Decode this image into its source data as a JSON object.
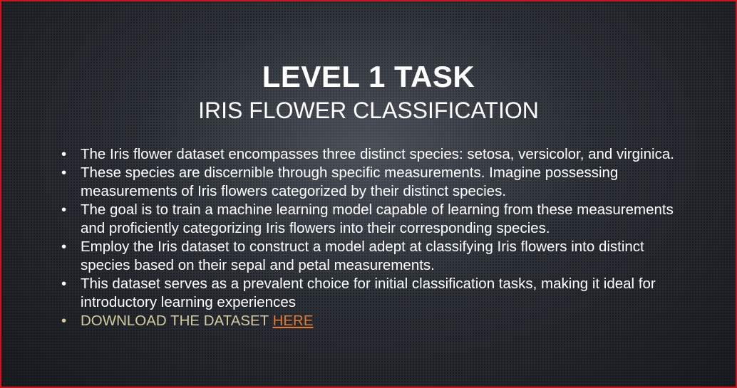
{
  "slide": {
    "title": "LEVEL 1 TASK",
    "subtitle": "IRIS FLOWER CLASSIFICATION",
    "bullet_glyph": "•",
    "bullets": [
      "The Iris flower dataset encompasses three distinct species: setosa, versicolor, and virginica.",
      "These species are discernible through specific measurements. Imagine possessing measurements of Iris flowers categorized by their distinct species.",
      "The goal is to train a machine learning model capable of learning from these measurements and proficiently categorizing Iris flowers into their corresponding species.",
      "Employ the Iris dataset to construct a model adept at classifying Iris flowers into distinct species based on their sepal and petal measurements.",
      "This dataset serves as a prevalent choice for initial classification tasks, making it ideal for introductory learning experiences"
    ],
    "download": {
      "text": "DOWNLOAD THE DATASET ",
      "link_text": "HERE"
    }
  },
  "colors": {
    "border": "#d0121b",
    "background": "#2b2f35",
    "text": "#ffffff",
    "download_text": "#d6cba0",
    "link": "#e07a35"
  }
}
